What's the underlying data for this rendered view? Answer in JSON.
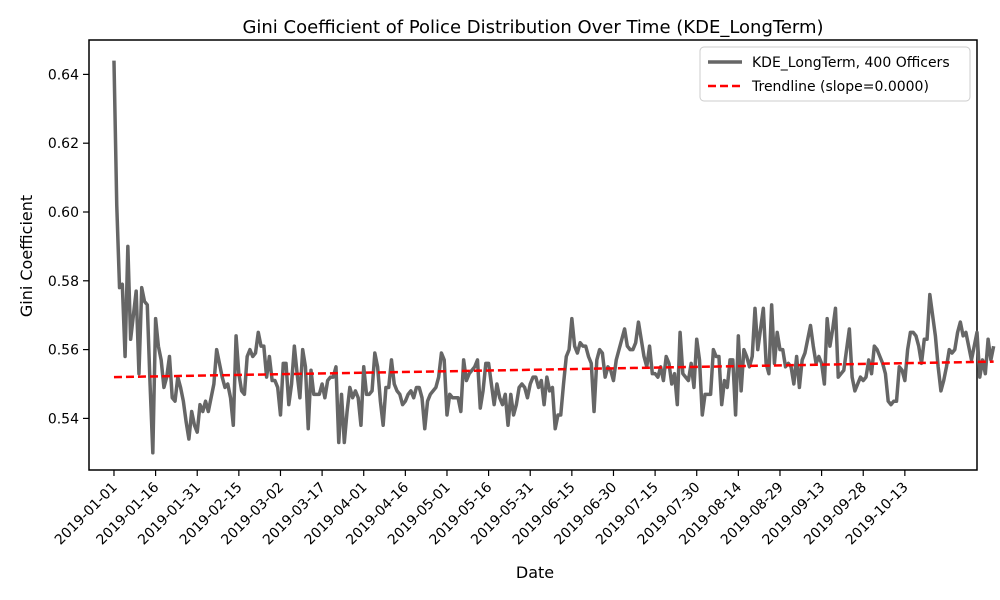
{
  "chart_data": {
    "type": "line",
    "title": "Gini Coefficient of Police Distribution Over Time (KDE_LongTerm)",
    "xlabel": "Date",
    "ylabel": "Gini Coefficient",
    "x_range": [
      "2018-12-23",
      "2019-11-08"
    ],
    "ylim": [
      0.525,
      0.65
    ],
    "y_ticks": [
      0.54,
      0.56,
      0.58,
      0.6,
      0.62,
      0.64
    ],
    "y_tick_labels": [
      "0.54",
      "0.56",
      "0.58",
      "0.60",
      "0.62",
      "0.64"
    ],
    "x_ticks": [
      "2019-01-01",
      "2019-01-16",
      "2019-01-31",
      "2019-02-15",
      "2019-03-02",
      "2019-03-17",
      "2019-04-01",
      "2019-04-16",
      "2019-05-01",
      "2019-05-16",
      "2019-05-31",
      "2019-06-15",
      "2019-06-30",
      "2019-07-15",
      "2019-07-30",
      "2019-08-14",
      "2019-08-29",
      "2019-09-13",
      "2019-09-28",
      "2019-10-13"
    ],
    "legend_position": "top-right",
    "grid": false,
    "start_date": "2019-01-01",
    "series": [
      {
        "name": "KDE_LongTerm, 400 Officers",
        "color": "#666666",
        "style": "solid",
        "values": [
          0.644,
          0.602,
          0.578,
          0.579,
          0.558,
          0.59,
          0.563,
          0.57,
          0.577,
          0.553,
          0.578,
          0.574,
          0.573,
          0.55,
          0.53,
          0.569,
          0.561,
          0.557,
          0.549,
          0.552,
          0.558,
          0.546,
          0.545,
          0.552,
          0.549,
          0.545,
          0.539,
          0.534,
          0.542,
          0.538,
          0.536,
          0.544,
          0.542,
          0.545,
          0.542,
          0.546,
          0.55,
          0.56,
          0.556,
          0.552,
          0.549,
          0.55,
          0.546,
          0.538,
          0.564,
          0.553,
          0.548,
          0.547,
          0.558,
          0.56,
          0.558,
          0.559,
          0.565,
          0.561,
          0.561,
          0.552,
          0.558,
          0.551,
          0.551,
          0.549,
          0.541,
          0.556,
          0.556,
          0.544,
          0.55,
          0.561,
          0.553,
          0.546,
          0.56,
          0.555,
          0.537,
          0.554,
          0.547,
          0.547,
          0.547,
          0.55,
          0.546,
          0.551,
          0.552,
          0.552,
          0.555,
          0.533,
          0.547,
          0.533,
          0.542,
          0.549,
          0.546,
          0.548,
          0.546,
          0.538,
          0.555,
          0.547,
          0.547,
          0.548,
          0.559,
          0.555,
          0.545,
          0.538,
          0.549,
          0.549,
          0.557,
          0.55,
          0.548,
          0.547,
          0.544,
          0.545,
          0.547,
          0.548,
          0.546,
          0.549,
          0.549,
          0.546,
          0.537,
          0.545,
          0.547,
          0.548,
          0.549,
          0.552,
          0.559,
          0.557,
          0.541,
          0.547,
          0.546,
          0.546,
          0.546,
          0.542,
          0.557,
          0.551,
          0.553,
          0.554,
          0.555,
          0.557,
          0.543,
          0.548,
          0.556,
          0.556,
          0.55,
          0.544,
          0.55,
          0.546,
          0.544,
          0.547,
          0.538,
          0.547,
          0.541,
          0.544,
          0.549,
          0.55,
          0.549,
          0.546,
          0.55,
          0.552,
          0.552,
          0.549,
          0.551,
          0.544,
          0.552,
          0.548,
          0.549,
          0.537,
          0.541,
          0.541,
          0.55,
          0.558,
          0.56,
          0.569,
          0.561,
          0.559,
          0.562,
          0.561,
          0.561,
          0.558,
          0.556,
          0.542,
          0.557,
          0.56,
          0.559,
          0.552,
          0.555,
          0.554,
          0.551,
          0.557,
          0.56,
          0.563,
          0.566,
          0.561,
          0.56,
          0.56,
          0.562,
          0.568,
          0.563,
          0.558,
          0.555,
          0.561,
          0.553,
          0.553,
          0.552,
          0.555,
          0.551,
          0.558,
          0.556,
          0.55,
          0.553,
          0.544,
          0.565,
          0.553,
          0.552,
          0.551,
          0.556,
          0.549,
          0.563,
          0.557,
          0.541,
          0.547,
          0.547,
          0.547,
          0.56,
          0.558,
          0.558,
          0.544,
          0.551,
          0.549,
          0.557,
          0.557,
          0.541,
          0.564,
          0.548,
          0.56,
          0.558,
          0.555,
          0.558,
          0.572,
          0.56,
          0.566,
          0.572,
          0.556,
          0.553,
          0.573,
          0.556,
          0.565,
          0.56,
          0.56,
          0.555,
          0.556,
          0.555,
          0.55,
          0.558,
          0.549,
          0.557,
          0.559,
          0.563,
          0.567,
          0.561,
          0.556,
          0.558,
          0.556,
          0.55,
          0.569,
          0.561,
          0.566,
          0.572,
          0.552,
          0.553,
          0.554,
          0.56,
          0.566,
          0.552,
          0.548,
          0.55,
          0.552,
          0.551,
          0.552,
          0.557,
          0.553,
          0.561,
          0.56,
          0.558,
          0.556,
          0.553,
          0.545,
          0.544,
          0.545,
          0.545,
          0.555,
          0.554,
          0.551,
          0.56,
          0.565,
          0.565,
          0.564,
          0.561,
          0.556,
          0.563,
          0.563,
          0.576,
          0.57,
          0.564,
          0.555,
          0.548,
          0.551,
          0.555,
          0.56,
          0.559,
          0.56,
          0.565,
          0.568,
          0.564,
          0.565,
          0.561,
          0.557,
          0.561,
          0.565,
          0.552,
          0.557,
          0.553,
          0.563,
          0.557,
          0.561
        ]
      },
      {
        "name": "Trendline (slope=0.0000)",
        "color": "#ff0000",
        "style": "dashed",
        "start_value": 0.552,
        "end_value": 0.5565
      }
    ]
  }
}
